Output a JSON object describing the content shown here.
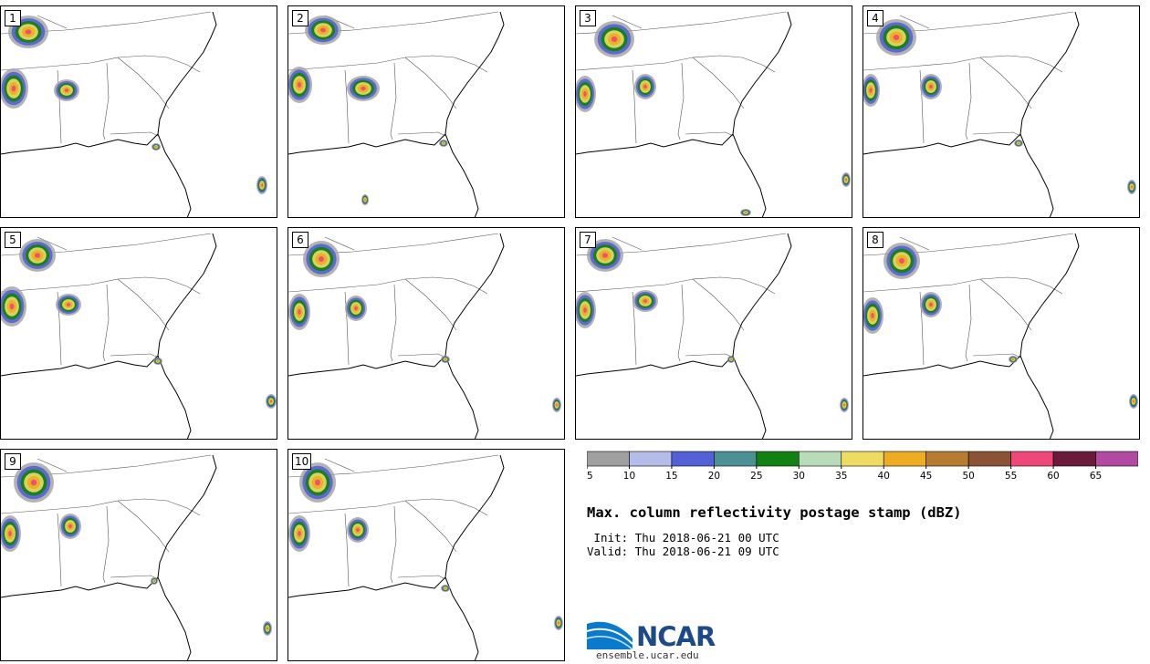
{
  "panels": [
    {
      "label": "1"
    },
    {
      "label": "2"
    },
    {
      "label": "3"
    },
    {
      "label": "4"
    },
    {
      "label": "5"
    },
    {
      "label": "6"
    },
    {
      "label": "7"
    },
    {
      "label": "8"
    },
    {
      "label": "9"
    },
    {
      "label": "10"
    }
  ],
  "colorbar": {
    "colors": [
      "#a0a0a0",
      "#b4bce8",
      "#5460d6",
      "#4c9096",
      "#118211",
      "#b8dcb8",
      "#eedc62",
      "#eeac22",
      "#b67c30",
      "#8a5434",
      "#ee4878",
      "#6a1a3a",
      "#b24aa2"
    ],
    "tick_labels": [
      "5",
      "10",
      "15",
      "20",
      "25",
      "30",
      "35",
      "40",
      "45",
      "50",
      "55",
      "60",
      "65"
    ]
  },
  "title": "Max. column reflectivity postage stamp (dBZ)",
  "init_line": " Init: Thu 2018-06-21 00 UTC",
  "valid_line": "Valid: Thu 2018-06-21 09 UTC",
  "logo": {
    "text": "NCAR",
    "url": "ensemble.ucar.edu",
    "primary_color": "#1c4a88",
    "accent_color": "#0a7acc"
  }
}
